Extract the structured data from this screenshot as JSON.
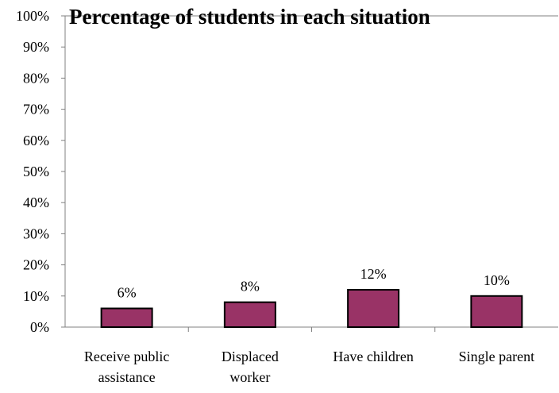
{
  "chart_data": {
    "type": "bar",
    "title": "Percentage of students in each situation",
    "categories": [
      [
        "Receive public",
        "assistance"
      ],
      [
        "Displaced",
        "worker"
      ],
      [
        "Have children"
      ],
      [
        "Single parent"
      ]
    ],
    "values": [
      6,
      8,
      12,
      10
    ],
    "data_labels": [
      "6%",
      "8%",
      "12%",
      "10%"
    ],
    "y_ticks": [
      {
        "value": 0,
        "label": "0%"
      },
      {
        "value": 10,
        "label": "10%"
      },
      {
        "value": 20,
        "label": "20%"
      },
      {
        "value": 30,
        "label": "30%"
      },
      {
        "value": 40,
        "label": "40%"
      },
      {
        "value": 50,
        "label": "50%"
      },
      {
        "value": 60,
        "label": "60%"
      },
      {
        "value": 70,
        "label": "70%"
      },
      {
        "value": 80,
        "label": "80%"
      },
      {
        "value": 90,
        "label": "90%"
      },
      {
        "value": 100,
        "label": "100%"
      }
    ],
    "ylim": [
      0,
      100
    ],
    "xlabel": "",
    "ylabel": "",
    "grid": false,
    "legend": "none",
    "colors": {
      "bar_fill": "#993366",
      "bar_stroke": "#000000",
      "axis": "#808080",
      "text": "#000000"
    }
  }
}
